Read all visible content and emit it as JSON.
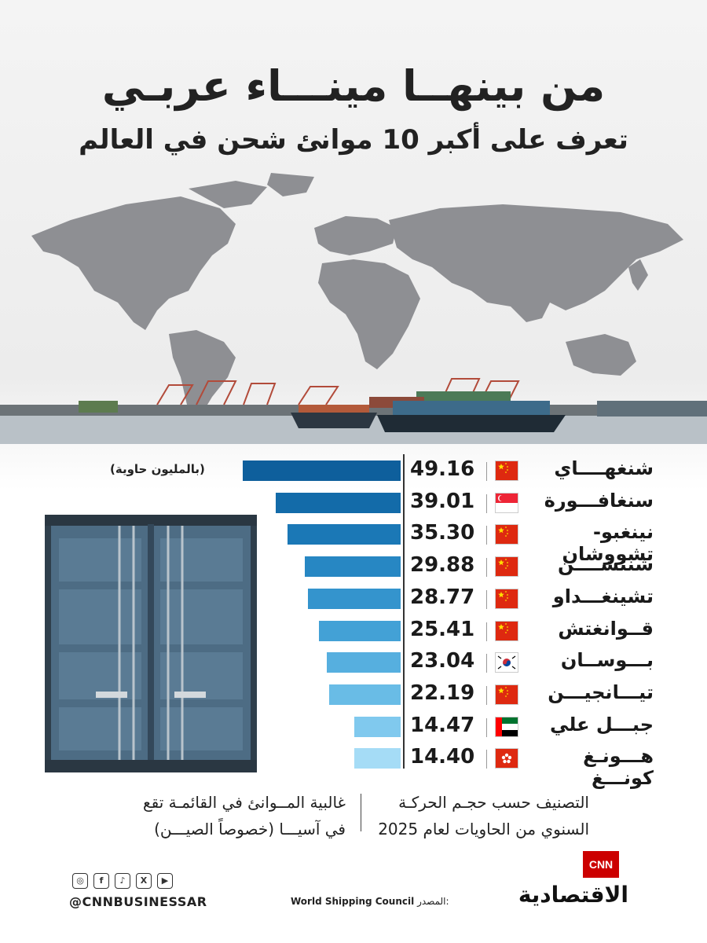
{
  "header": {
    "title": "من بينهــا مينـــاء عربـي",
    "subtitle": "تعرف على أكبر 10 موانئ شحن في العالم"
  },
  "chart_data": {
    "type": "bar",
    "orientation": "horizontal",
    "unit_label": "(بالمليون حاوية)",
    "categories": [
      "شنغهــــاي",
      "سنغافـــورة",
      "نينغبو-تشووشان",
      "شنتشــــن",
      "تشينغـــداو",
      "قــوانغتش",
      "بـــوســان",
      "تيـــانجيـــن",
      "جبـــل علي",
      "هـــونـغ كونـــغ"
    ],
    "values": [
      49.16,
      39.01,
      35.3,
      29.88,
      28.77,
      25.41,
      23.04,
      22.19,
      14.47,
      14.4
    ],
    "value_labels": [
      "49.16",
      "39.01",
      "35.30",
      "29.88",
      "28.77",
      "25.41",
      "23.04",
      "22.19",
      "14.47",
      "14.40"
    ],
    "flags": [
      "china-flag",
      "singapore-flag",
      "china-flag",
      "china-flag",
      "china-flag",
      "china-flag",
      "south-korea-flag",
      "china-flag",
      "uae-flag",
      "hong-kong-flag"
    ],
    "bar_colors": [
      "#0e5f9c",
      "#136ba9",
      "#1b78b6",
      "#2787c3",
      "#3494cd",
      "#43a1d6",
      "#56afdf",
      "#69bce6",
      "#80c9ee",
      "#a5dcf6"
    ]
  },
  "notes": {
    "ranking_line1": "التصنيف حسب حجـم الحركـة",
    "ranking_line2": "السنوي من الحاويات لعام 2025",
    "asia_line1": "غالبية المــوانئ في القائمـة تقع",
    "asia_line2": "في آسيـــا (خصوصاً الصيـــن)"
  },
  "footer": {
    "social_icons": [
      "instagram-icon",
      "facebook-icon",
      "tiktok-icon",
      "x-icon",
      "youtube-icon"
    ],
    "social_glyphs": [
      "◎",
      "f",
      "♪",
      "X",
      "▶"
    ],
    "handle": "@CNNBUSINESSAR",
    "source_label": "المصدر:",
    "source_name": "World Shipping Council",
    "logo_top": "CNN",
    "logo_bottom": "الاقتصادية"
  }
}
